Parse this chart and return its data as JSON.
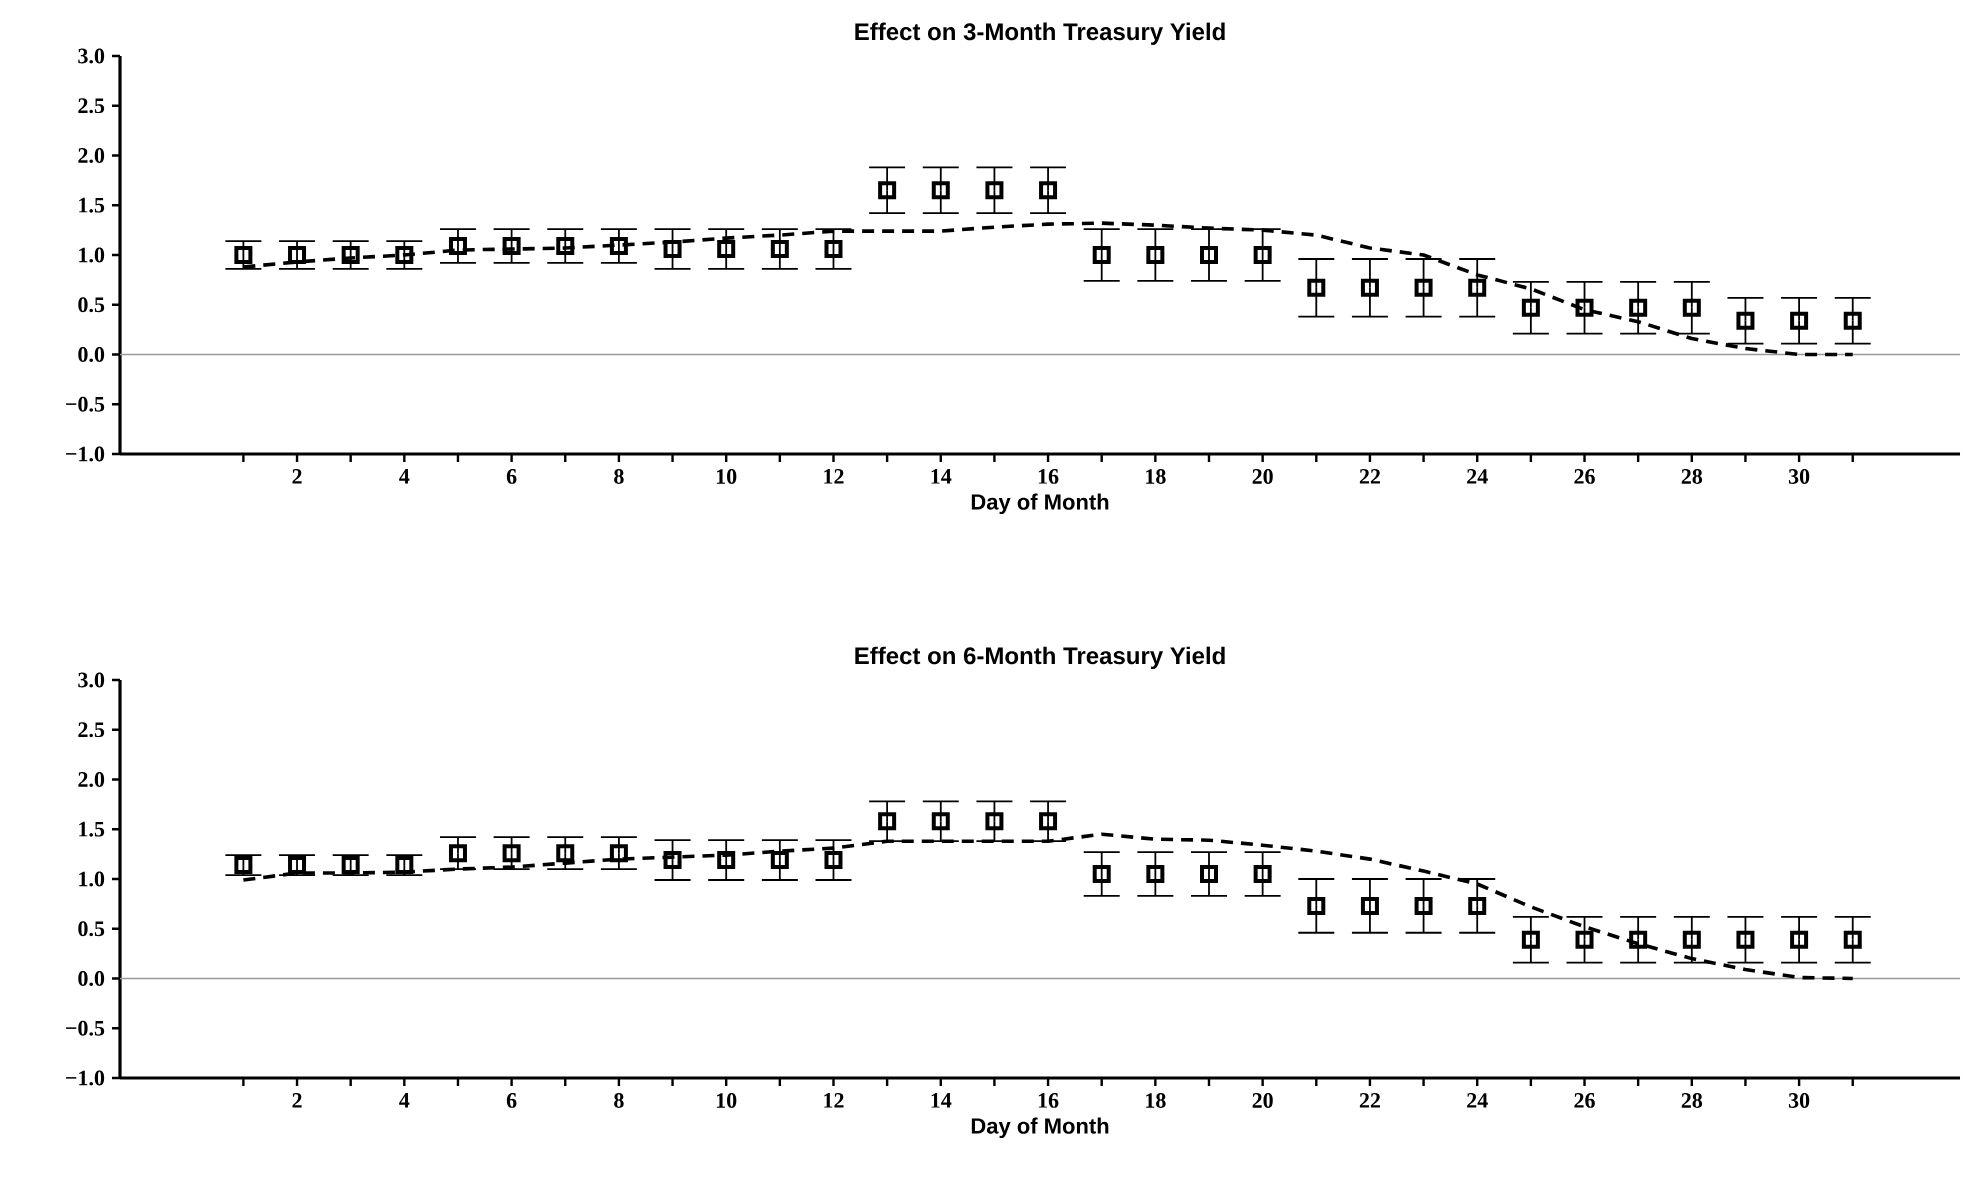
{
  "chart_data": [
    {
      "type": "scatter",
      "title": "Effect on 3-Month Treasury Yield",
      "xlabel": "Day of Month",
      "xlim": [
        -1.3,
        33
      ],
      "ylim": [
        -1,
        3
      ],
      "xticks": [
        {
          "value": 1,
          "label": null
        },
        2,
        {
          "value": 3,
          "label": null
        },
        4,
        {
          "value": 5,
          "label": null
        },
        6,
        {
          "value": 7,
          "label": null
        },
        8,
        {
          "value": 9,
          "label": null
        },
        10,
        {
          "value": 11,
          "label": null
        },
        12,
        {
          "value": 13,
          "label": null
        },
        14,
        {
          "value": 15,
          "label": null
        },
        16,
        {
          "value": 17,
          "label": null
        },
        18,
        {
          "value": 19,
          "label": null
        },
        20,
        {
          "value": 21,
          "label": null
        },
        22,
        {
          "value": 23,
          "label": null
        },
        24,
        {
          "value": 25,
          "label": null
        },
        26,
        {
          "value": 27,
          "label": null
        },
        28,
        {
          "value": 29,
          "label": null
        },
        30,
        {
          "value": 31,
          "label": null
        }
      ],
      "yticks": [
        {
          "value": -1,
          "label": "−1.0"
        },
        {
          "value": -0.5,
          "label": "−0.5"
        },
        {
          "value": 0,
          "label": "0.0"
        },
        {
          "value": 0.5,
          "label": "0.5"
        },
        {
          "value": 1,
          "label": "1.0"
        },
        {
          "value": 1.5,
          "label": "1.5"
        },
        {
          "value": 2,
          "label": "2.0"
        },
        {
          "value": 2.5,
          "label": "2.5"
        },
        {
          "value": 3,
          "label": "3.0"
        }
      ],
      "ref_lines": [
        {
          "axis": "y",
          "value": 0,
          "color": "#999999"
        }
      ],
      "series": [
        {
          "marker": "square",
          "color": "#000000",
          "x": [
            1,
            2,
            3,
            4,
            5,
            6,
            7,
            8,
            9,
            10,
            11,
            12,
            13,
            14,
            15,
            16,
            17,
            18,
            19,
            20,
            21,
            22,
            23,
            24,
            25,
            26,
            27,
            28,
            29,
            30,
            31
          ],
          "values": [
            1.0,
            1.0,
            1.0,
            1.0,
            1.09,
            1.09,
            1.09,
            1.09,
            1.06,
            1.06,
            1.06,
            1.06,
            1.65,
            1.65,
            1.65,
            1.65,
            1.0,
            1.0,
            1.0,
            1.0,
            0.67,
            0.67,
            0.67,
            0.67,
            0.47,
            0.47,
            0.47,
            0.47,
            0.34,
            0.34,
            0.34
          ],
          "errors": [
            0.14,
            0.14,
            0.14,
            0.14,
            0.17,
            0.17,
            0.17,
            0.17,
            0.2,
            0.2,
            0.2,
            0.2,
            0.23,
            0.23,
            0.23,
            0.23,
            0.26,
            0.26,
            0.26,
            0.26,
            0.29,
            0.29,
            0.29,
            0.29,
            0.26,
            0.26,
            0.26,
            0.26,
            0.23,
            0.23,
            0.23
          ]
        },
        {
          "type": "line",
          "marker": "none",
          "line_style": "dashed",
          "color": "#000000",
          "x": [
            1,
            2,
            3,
            4,
            5,
            6,
            7,
            8,
            9,
            10,
            11,
            12,
            13,
            14,
            15,
            16,
            17,
            18,
            19,
            20,
            21,
            22,
            23,
            24,
            25,
            26,
            27,
            28,
            29,
            30,
            31
          ],
          "values": [
            0.88,
            0.93,
            0.97,
            1.0,
            1.05,
            1.06,
            1.07,
            1.1,
            1.13,
            1.17,
            1.2,
            1.24,
            1.24,
            1.24,
            1.28,
            1.31,
            1.32,
            1.3,
            1.27,
            1.25,
            1.2,
            1.07,
            1.0,
            0.8,
            0.66,
            0.45,
            0.33,
            0.16,
            0.06,
            0.0,
            0.0
          ]
        }
      ]
    },
    {
      "type": "scatter",
      "title": "Effect on 6-Month Treasury Yield",
      "xlabel": "Day of Month",
      "xlim": [
        -1.3,
        33
      ],
      "ylim": [
        -1,
        3
      ],
      "xticks": [
        {
          "value": 1,
          "label": null
        },
        2,
        {
          "value": 3,
          "label": null
        },
        4,
        {
          "value": 5,
          "label": null
        },
        6,
        {
          "value": 7,
          "label": null
        },
        8,
        {
          "value": 9,
          "label": null
        },
        10,
        {
          "value": 11,
          "label": null
        },
        12,
        {
          "value": 13,
          "label": null
        },
        14,
        {
          "value": 15,
          "label": null
        },
        16,
        {
          "value": 17,
          "label": null
        },
        18,
        {
          "value": 19,
          "label": null
        },
        20,
        {
          "value": 21,
          "label": null
        },
        22,
        {
          "value": 23,
          "label": null
        },
        24,
        {
          "value": 25,
          "label": null
        },
        26,
        {
          "value": 27,
          "label": null
        },
        28,
        {
          "value": 29,
          "label": null
        },
        30,
        {
          "value": 31,
          "label": null
        }
      ],
      "yticks": [
        {
          "value": -1,
          "label": "−1.0"
        },
        {
          "value": -0.5,
          "label": "−0.5"
        },
        {
          "value": 0,
          "label": "0.0"
        },
        {
          "value": 0.5,
          "label": "0.5"
        },
        {
          "value": 1,
          "label": "1.0"
        },
        {
          "value": 1.5,
          "label": "1.5"
        },
        {
          "value": 2,
          "label": "2.0"
        },
        {
          "value": 2.5,
          "label": "2.5"
        },
        {
          "value": 3,
          "label": "3.0"
        }
      ],
      "ref_lines": [
        {
          "axis": "y",
          "value": 0,
          "color": "#999999"
        }
      ],
      "series": [
        {
          "marker": "square",
          "color": "#000000",
          "x": [
            1,
            2,
            3,
            4,
            5,
            6,
            7,
            8,
            9,
            10,
            11,
            12,
            13,
            14,
            15,
            16,
            17,
            18,
            19,
            20,
            21,
            22,
            23,
            24,
            25,
            26,
            27,
            28,
            29,
            30,
            31
          ],
          "values": [
            1.14,
            1.14,
            1.14,
            1.14,
            1.26,
            1.26,
            1.26,
            1.26,
            1.19,
            1.19,
            1.19,
            1.19,
            1.58,
            1.58,
            1.58,
            1.58,
            1.05,
            1.05,
            1.05,
            1.05,
            0.73,
            0.73,
            0.73,
            0.73,
            0.39,
            0.39,
            0.39,
            0.39,
            0.39,
            0.39,
            0.39
          ],
          "errors": [
            0.1,
            0.1,
            0.1,
            0.1,
            0.16,
            0.16,
            0.16,
            0.16,
            0.2,
            0.2,
            0.2,
            0.2,
            0.2,
            0.2,
            0.2,
            0.2,
            0.22,
            0.22,
            0.22,
            0.22,
            0.27,
            0.27,
            0.27,
            0.27,
            0.23,
            0.23,
            0.23,
            0.23,
            0.23,
            0.23,
            0.23
          ]
        },
        {
          "type": "line",
          "marker": "none",
          "line_style": "dashed",
          "color": "#000000",
          "x": [
            1,
            2,
            3,
            4,
            5,
            6,
            7,
            8,
            9,
            10,
            11,
            12,
            13,
            14,
            15,
            16,
            17,
            18,
            19,
            20,
            21,
            22,
            23,
            24,
            25,
            26,
            27,
            28,
            29,
            30,
            31
          ],
          "values": [
            0.99,
            1.06,
            1.06,
            1.07,
            1.1,
            1.12,
            1.16,
            1.2,
            1.22,
            1.24,
            1.28,
            1.31,
            1.38,
            1.38,
            1.38,
            1.38,
            1.45,
            1.4,
            1.39,
            1.34,
            1.28,
            1.2,
            1.08,
            0.95,
            0.72,
            0.52,
            0.35,
            0.2,
            0.09,
            0.01,
            0.0
          ]
        }
      ]
    }
  ]
}
